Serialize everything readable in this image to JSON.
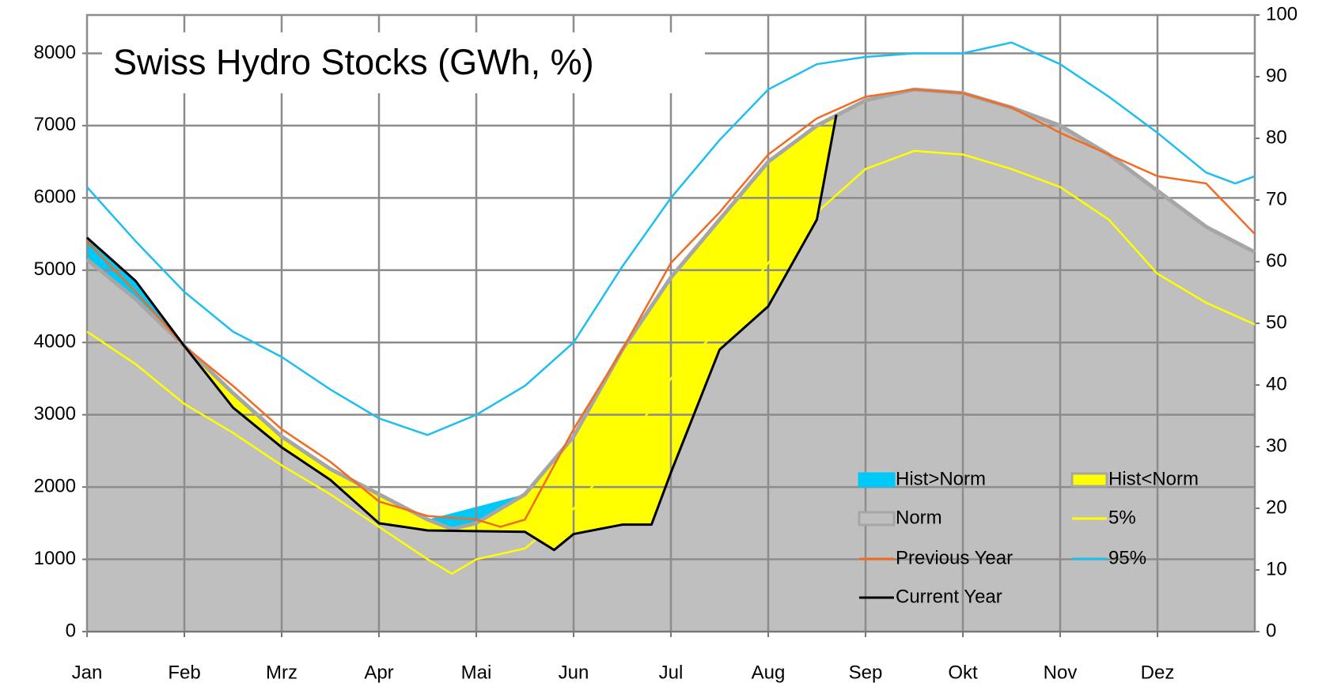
{
  "chart_data": {
    "type": "line",
    "title": "Swiss Hydro Stocks (GWh, %)",
    "xlim": [
      0,
      12
    ],
    "xticks": [
      {
        "value": 0,
        "label": "Jan"
      },
      {
        "value": 1,
        "label": "Feb"
      },
      {
        "value": 2,
        "label": "Mrz"
      },
      {
        "value": 3,
        "label": "Apr"
      },
      {
        "value": 4,
        "label": "Mai"
      },
      {
        "value": 5,
        "label": "Jun"
      },
      {
        "value": 6,
        "label": "Jul"
      },
      {
        "value": 7,
        "label": "Aug"
      },
      {
        "value": 8,
        "label": "Sep"
      },
      {
        "value": 9,
        "label": "Okt"
      },
      {
        "value": 10,
        "label": "Nov"
      },
      {
        "value": 11,
        "label": "Dez"
      }
    ],
    "ylim": [
      0,
      8530
    ],
    "yticks": [
      0,
      1000,
      2000,
      3000,
      4000,
      5000,
      6000,
      7000,
      8000
    ],
    "y2lim": [
      0,
      100
    ],
    "y2ticks": [
      0,
      10,
      20,
      30,
      40,
      50,
      60,
      70,
      80,
      90,
      100
    ],
    "grid": true,
    "legend": "lower right",
    "fill_legend": [
      {
        "name": "Hist>Norm",
        "color": "#00c8f8"
      },
      {
        "name": "Hist<Norm",
        "color": "#ffff00"
      }
    ],
    "series": [
      {
        "name": "Norm",
        "color": "#bfbfbf",
        "style": "area",
        "x": [
          0,
          0.5,
          1,
          1.5,
          2,
          2.5,
          3,
          3.5,
          3.75,
          4,
          4.5,
          5,
          5.5,
          6,
          6.5,
          7,
          7.5,
          8,
          8.5,
          9,
          9.5,
          10,
          10.5,
          11,
          11.5,
          12
        ],
        "values": [
          5150,
          4600,
          3950,
          3300,
          2700,
          2250,
          1900,
          1550,
          1420,
          1500,
          1900,
          2700,
          3900,
          4900,
          5700,
          6500,
          7000,
          7350,
          7500,
          7450,
          7250,
          7000,
          6600,
          6100,
          5600,
          5250
        ]
      },
      {
        "name": "5%",
        "color": "#ffff00",
        "x": [
          0,
          0.5,
          1,
          1.5,
          2,
          2.5,
          3,
          3.5,
          3.75,
          4,
          4.5,
          5,
          5.5,
          6,
          6.5,
          7,
          7.5,
          8,
          8.5,
          9,
          9.5,
          10,
          10.5,
          11,
          11.5,
          12
        ],
        "values": [
          4150,
          3700,
          3150,
          2750,
          2300,
          1900,
          1450,
          1000,
          800,
          1000,
          1150,
          1700,
          2500,
          3500,
          4200,
          5100,
          5800,
          6400,
          6650,
          6600,
          6400,
          6150,
          5700,
          4950,
          4550,
          4250
        ]
      },
      {
        "name": "Previous Year",
        "color": "#f26b21",
        "x": [
          0,
          0.5,
          1,
          1.5,
          2,
          2.5,
          3,
          3.5,
          4,
          4.25,
          4.5,
          5,
          5.5,
          6,
          6.5,
          7,
          7.5,
          8,
          8.5,
          9,
          9.5,
          10,
          10.5,
          11,
          11.5,
          12
        ],
        "values": [
          5400,
          4700,
          3950,
          3400,
          2800,
          2350,
          1800,
          1600,
          1550,
          1450,
          1550,
          2800,
          3900,
          5100,
          5800,
          6600,
          7100,
          7400,
          7500,
          7450,
          7250,
          6900,
          6600,
          6300,
          6200,
          5500
        ]
      },
      {
        "name": "95%",
        "color": "#1ebef0",
        "x": [
          0,
          0.5,
          1,
          1.5,
          2,
          2.5,
          3,
          3.5,
          4,
          4.5,
          5,
          5.5,
          6,
          6.5,
          7,
          7.5,
          8,
          8.5,
          9,
          9.5,
          10,
          10.5,
          11,
          11.5,
          11.8,
          12
        ],
        "values": [
          6150,
          5400,
          4700,
          4150,
          3800,
          3350,
          2950,
          2720,
          3000,
          3400,
          4000,
          5050,
          6000,
          6800,
          7500,
          7850,
          7950,
          8000,
          8000,
          8150,
          7850,
          7400,
          6900,
          6350,
          6200,
          6300
        ]
      },
      {
        "name": "Current Year",
        "color": "#000000",
        "x": [
          0,
          0.5,
          1,
          1.5,
          2,
          2.5,
          3,
          3.5,
          4.5,
          4.8,
          5,
          5.5,
          5.8,
          6,
          6.5,
          7,
          7.5,
          7.7
        ],
        "values": [
          5450,
          4850,
          3950,
          3100,
          2550,
          2100,
          1500,
          1400,
          1380,
          1130,
          1350,
          1480,
          1480,
          2200,
          3900,
          4500,
          5700,
          7150
        ]
      }
    ]
  }
}
